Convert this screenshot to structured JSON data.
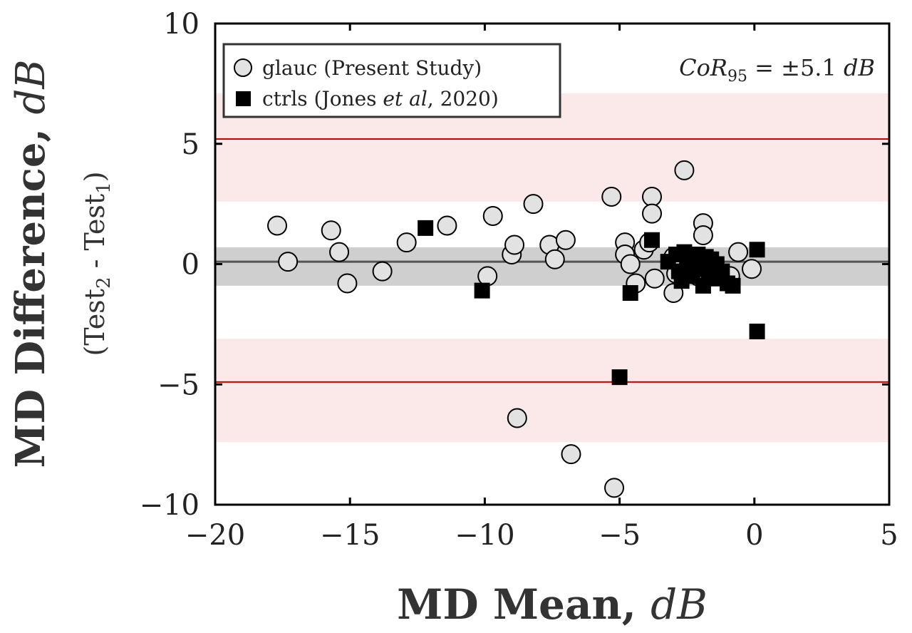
{
  "chart_data": {
    "type": "scatter",
    "ylabel_main": "MD Difference, ",
    "ylabel_main_unit": "dB",
    "ylabel_sub_open": "(Test",
    "ylabel_sub_2": "2",
    "ylabel_sub_mid": " - Test",
    "ylabel_sub_1": "1",
    "ylabel_sub_close": ")",
    "xlabel_main": "MD Mean, ",
    "xlabel_unit": "dB",
    "xlim": [
      -20,
      5
    ],
    "ylim": [
      -10,
      10
    ],
    "xticks": [
      -20,
      -15,
      -10,
      -5,
      0,
      5
    ],
    "yticks": [
      10,
      5,
      0,
      -5,
      -10
    ],
    "xtick_labels": [
      "−20",
      "−15",
      "−10",
      "−5",
      "0",
      "5"
    ],
    "ytick_labels": [
      "10",
      "5",
      "0",
      "−5",
      "−10"
    ],
    "annotation": {
      "prefix": "CoR",
      "subscript": "95",
      "suffix": " = ±5.1 ",
      "unit": "dB"
    },
    "legend_position": "top-left",
    "grid": false,
    "mean_line": 0.1,
    "ci_band": [
      -0.9,
      0.7
    ],
    "loa_lines": [
      5.2,
      -4.9
    ],
    "loa_upper_band": [
      2.6,
      7.1
    ],
    "loa_lower_band": [
      -7.4,
      -3.1
    ],
    "colors": {
      "glauc_fill": "#e2e2e2",
      "glauc_edge": "#000000",
      "ctrls_fill": "#000000",
      "mean_line": "#555555",
      "ci_band": "#cfcfcf",
      "loa_line": "#cc0000",
      "loa_band": "#fbe8e8"
    },
    "series": [
      {
        "name": "glauc (Present Study)",
        "marker": "circle",
        "points": [
          [
            -17.7,
            1.6
          ],
          [
            -17.3,
            0.1
          ],
          [
            -15.7,
            1.4
          ],
          [
            -15.4,
            0.5
          ],
          [
            -15.1,
            -0.8
          ],
          [
            -13.8,
            -0.3
          ],
          [
            -12.9,
            0.9
          ],
          [
            -11.4,
            1.6
          ],
          [
            -9.9,
            -0.5
          ],
          [
            -9.7,
            2.0
          ],
          [
            -9.0,
            0.4
          ],
          [
            -8.9,
            0.8
          ],
          [
            -8.8,
            -6.4
          ],
          [
            -8.2,
            2.5
          ],
          [
            -7.6,
            0.8
          ],
          [
            -7.4,
            0.2
          ],
          [
            -7.0,
            1.0
          ],
          [
            -6.8,
            -7.9
          ],
          [
            -5.3,
            2.8
          ],
          [
            -5.2,
            -9.3
          ],
          [
            -4.8,
            0.9
          ],
          [
            -4.8,
            0.4
          ],
          [
            -4.6,
            0.0
          ],
          [
            -4.4,
            -0.8
          ],
          [
            -4.1,
            0.6
          ],
          [
            -3.9,
            0.9
          ],
          [
            -3.8,
            2.8
          ],
          [
            -3.8,
            2.1
          ],
          [
            -3.7,
            -0.6
          ],
          [
            -3.0,
            -1.2
          ],
          [
            -3.0,
            0.3
          ],
          [
            -2.9,
            -0.4
          ],
          [
            -2.6,
            3.9
          ],
          [
            -2.3,
            0.2
          ],
          [
            -2.1,
            -0.5
          ],
          [
            -1.9,
            1.7
          ],
          [
            -1.9,
            1.2
          ],
          [
            -1.6,
            -0.2
          ],
          [
            -1.3,
            -0.4
          ],
          [
            -0.9,
            -0.5
          ],
          [
            -0.6,
            0.5
          ],
          [
            -0.1,
            -0.2
          ]
        ]
      },
      {
        "name": "ctrls (Jones et al, 2020)",
        "marker": "square",
        "points": [
          [
            -12.2,
            1.5
          ],
          [
            -10.1,
            -1.1
          ],
          [
            -5.0,
            -4.7
          ],
          [
            -4.6,
            -1.2
          ],
          [
            -3.8,
            1.0
          ],
          [
            -3.2,
            0.1
          ],
          [
            -2.9,
            0.4
          ],
          [
            -2.8,
            -0.3
          ],
          [
            -2.7,
            -0.7
          ],
          [
            -2.6,
            0.5
          ],
          [
            -2.5,
            0.0
          ],
          [
            -2.4,
            0.3
          ],
          [
            -2.3,
            -0.5
          ],
          [
            -2.2,
            0.1
          ],
          [
            -2.1,
            0.4
          ],
          [
            -2.0,
            -0.2
          ],
          [
            -1.9,
            -0.9
          ],
          [
            -1.8,
            0.3
          ],
          [
            -1.7,
            -0.4
          ],
          [
            -1.6,
            0.2
          ],
          [
            -1.5,
            -0.6
          ],
          [
            -1.4,
            0.0
          ],
          [
            -1.2,
            -0.3
          ],
          [
            -1.0,
            -0.8
          ],
          [
            -0.8,
            -0.9
          ],
          [
            0.1,
            0.6
          ],
          [
            0.1,
            -2.8
          ]
        ]
      }
    ],
    "legend": {
      "glauc_text": "glauc (Present Study)",
      "ctrls_prefix": "ctrls (Jones ",
      "ctrls_italic": "et al",
      "ctrls_suffix": ", 2020)"
    }
  }
}
